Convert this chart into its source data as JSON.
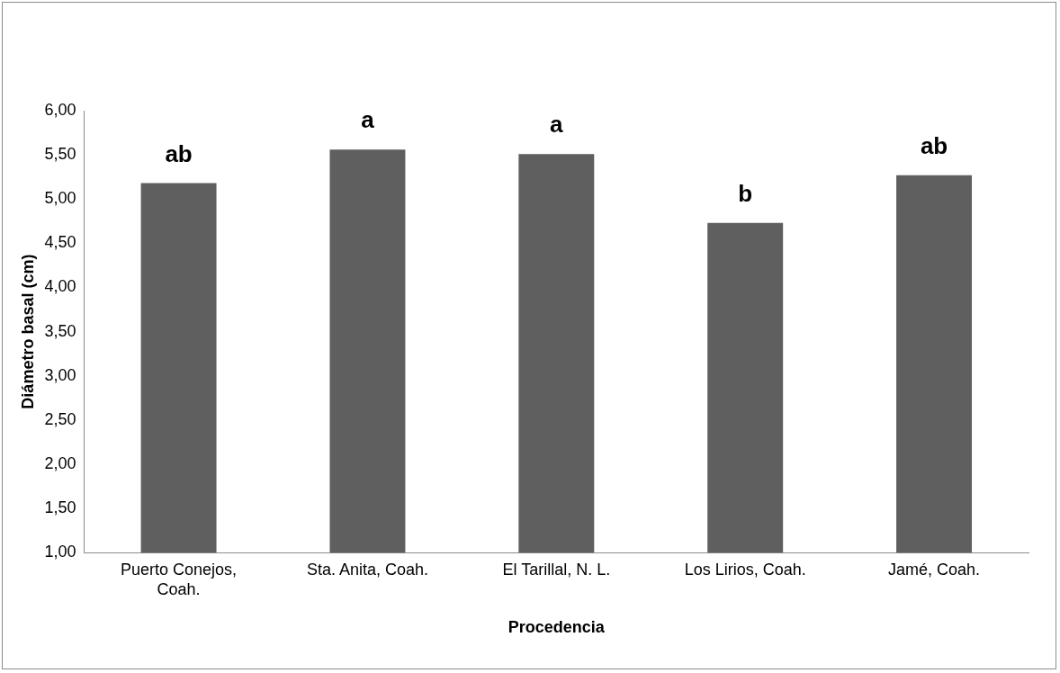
{
  "chart_data": {
    "type": "bar",
    "xlabel": "Procedencia",
    "ylabel": "Diámetro basal (cm)",
    "categories": [
      "Puerto Conejos, Coah.",
      "Sta. Anita, Coah.",
      "El Tarillal, N. L.",
      "Los Lirios, Coah.",
      "Jamé, Coah."
    ],
    "values": [
      5.18,
      5.56,
      5.51,
      4.73,
      5.27
    ],
    "color": "#5f5f5f",
    "ylim": [
      1,
      6
    ],
    "yticks": [
      {
        "value": 1,
        "label": "1,00"
      },
      {
        "value": 1.5,
        "label": "1,50"
      },
      {
        "value": 2,
        "label": "2,00"
      },
      {
        "value": 2.5,
        "label": "2,50"
      },
      {
        "value": 3,
        "label": "3,00"
      },
      {
        "value": 3.5,
        "label": "3,50"
      },
      {
        "value": 4,
        "label": "4,00"
      },
      {
        "value": 4.5,
        "label": "4,50"
      },
      {
        "value": 5,
        "label": "5,00"
      },
      {
        "value": 5.5,
        "label": "5,50"
      },
      {
        "value": 6,
        "label": "6,00"
      }
    ],
    "grid": false,
    "annotations": [
      {
        "text": "ab",
        "x": "Puerto Conejos, Coah.",
        "y": 5.18
      },
      {
        "text": "a",
        "x": "Sta. Anita, Coah.",
        "y": 5.56
      },
      {
        "text": "a",
        "x": "El Tarillal, N. L.",
        "y": 5.51
      },
      {
        "text": "b",
        "x": "Los Lirios, Coah.",
        "y": 4.73
      },
      {
        "text": "ab",
        "x": "Jamé, Coah.",
        "y": 5.27
      }
    ]
  }
}
